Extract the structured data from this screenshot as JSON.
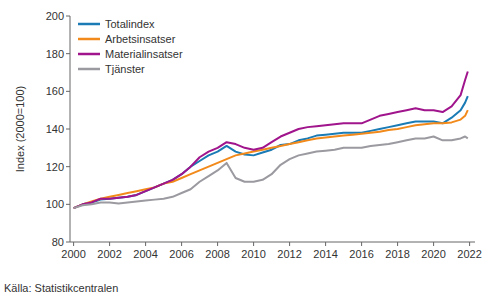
{
  "chart_data": {
    "type": "line",
    "ylabel": "Index (2000=100)",
    "source": "Källa: Statistikcentralen",
    "x": [
      2000,
      2000.5,
      2001,
      2001.5,
      2002,
      2002.5,
      2003,
      2003.5,
      2004,
      2004.5,
      2005,
      2005.5,
      2006,
      2006.5,
      2007,
      2007.5,
      2008,
      2008.5,
      2009,
      2009.5,
      2010,
      2010.5,
      2011,
      2011.5,
      2012,
      2012.5,
      2013,
      2013.5,
      2014,
      2014.5,
      2015,
      2015.5,
      2016,
      2016.5,
      2017,
      2017.5,
      2018,
      2018.5,
      2019,
      2019.5,
      2020,
      2020.5,
      2021,
      2021.5,
      2021.75,
      2021.9
    ],
    "series": [
      {
        "name": "Totalindex",
        "color": "#1a7bb5",
        "values": [
          98,
          100,
          101,
          102.5,
          103,
          103.5,
          104,
          105,
          107,
          109,
          111,
          113,
          116,
          120,
          123,
          126,
          128,
          131,
          128,
          126.5,
          126,
          127.5,
          129,
          131.5,
          132,
          134,
          135,
          136.5,
          137,
          137.5,
          138,
          138,
          138,
          139,
          140,
          141,
          142,
          143,
          144,
          144,
          144,
          143,
          146,
          150,
          154,
          157.5
        ]
      },
      {
        "name": "Arbetsinsatser",
        "color": "#f28a1b",
        "values": [
          98,
          100,
          101.5,
          103,
          104,
          105,
          106,
          107,
          108,
          109,
          111,
          112,
          114,
          116,
          118,
          120,
          122,
          124,
          126,
          127,
          128,
          129,
          130,
          131,
          132,
          133,
          134,
          135,
          135.5,
          136,
          136.5,
          137,
          137.5,
          138,
          138.5,
          139.5,
          140,
          141,
          142,
          142.5,
          143,
          143,
          143.5,
          145,
          147,
          150
        ]
      },
      {
        "name": "Materialinsatser",
        "color": "#a0148c",
        "values": [
          98,
          100,
          101,
          103,
          103,
          103.5,
          104,
          105,
          107,
          109,
          111,
          113,
          116,
          120,
          125,
          128,
          130,
          133,
          132,
          130,
          129,
          130,
          133,
          136,
          138,
          140,
          141,
          141.5,
          142,
          142.5,
          143,
          143,
          143,
          145,
          147,
          148,
          149,
          150,
          151,
          150,
          150,
          149,
          152,
          158,
          166,
          170.5
        ]
      },
      {
        "name": "Tjänster",
        "color": "#9a9aa0",
        "values": [
          98,
          99.5,
          100,
          101,
          101,
          100.5,
          101,
          101.5,
          102,
          102.5,
          103,
          104,
          106,
          108,
          112,
          115,
          118,
          122,
          114,
          112,
          112,
          113,
          116,
          121,
          124,
          126,
          127,
          128,
          128.5,
          129,
          130,
          130,
          130,
          131,
          131.5,
          132,
          133,
          134,
          135,
          135,
          136,
          134,
          134,
          135,
          136,
          135
        ]
      }
    ],
    "xlim": [
      1999.8,
      2022.3
    ],
    "xticks": [
      2000,
      2002,
      2004,
      2006,
      2008,
      2010,
      2012,
      2014,
      2016,
      2018,
      2020,
      2022
    ],
    "ylim": [
      80,
      200
    ],
    "yticks": [
      80,
      100,
      120,
      140,
      160,
      180,
      200
    ],
    "grid": false,
    "legend": "upper left"
  }
}
